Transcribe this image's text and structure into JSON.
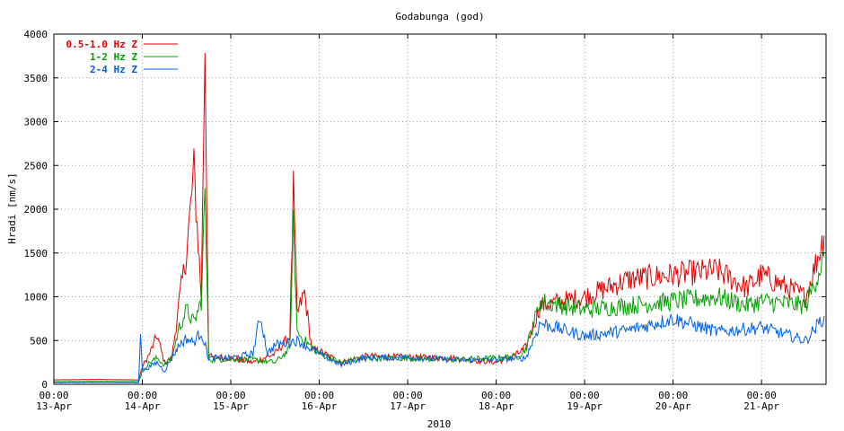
{
  "chart_data": {
    "type": "line",
    "title": "Godabunga (god)",
    "ylabel": "Hradi [nm/s]",
    "xlabel": "2010",
    "ylim": [
      0,
      4000
    ],
    "xlim": [
      "2010-04-13T00:00",
      "2010-04-21T17:30"
    ],
    "grid": true,
    "legend_position": "top-left",
    "y_ticks": [
      "0",
      "500",
      "1000",
      "1500",
      "2000",
      "2500",
      "3000",
      "3500",
      "4000"
    ],
    "x_ticks": [
      {
        "time": "00:00",
        "date": "13-Apr"
      },
      {
        "time": "00:00",
        "date": "14-Apr"
      },
      {
        "time": "00:00",
        "date": "15-Apr"
      },
      {
        "time": "00:00",
        "date": "16-Apr"
      },
      {
        "time": "00:00",
        "date": "17-Apr"
      },
      {
        "time": "00:00",
        "date": "18-Apr"
      },
      {
        "time": "00:00",
        "date": "19-Apr"
      },
      {
        "time": "00:00",
        "date": "20-Apr"
      },
      {
        "time": "00:00",
        "date": "21-Apr"
      }
    ],
    "series": [
      {
        "name": "0.5-1.0 Hz Z",
        "color": "#e00000",
        "x": [
          "2010-04-13T00:00",
          "2010-04-13T12:00",
          "2010-04-13T23:00",
          "2010-04-14T00:00",
          "2010-04-14T02:00",
          "2010-04-14T04:00",
          "2010-04-14T06:00",
          "2010-04-14T08:00",
          "2010-04-14T10:00",
          "2010-04-14T12:00",
          "2010-04-14T14:00",
          "2010-04-14T16:00",
          "2010-04-14T17:00",
          "2010-04-14T18:00",
          "2010-04-14T19:00",
          "2010-04-14T20:00",
          "2010-04-15T00:00",
          "2010-04-15T06:00",
          "2010-04-15T12:00",
          "2010-04-15T16:00",
          "2010-04-15T17:00",
          "2010-04-15T18:00",
          "2010-04-15T20:00",
          "2010-04-15T22:00",
          "2010-04-16T00:00",
          "2010-04-16T06:00",
          "2010-04-16T12:00",
          "2010-04-17T00:00",
          "2010-04-17T12:00",
          "2010-04-18T00:00",
          "2010-04-18T06:00",
          "2010-04-18T08:00",
          "2010-04-18T12:00",
          "2010-04-19T00:00",
          "2010-04-19T12:00",
          "2010-04-20T00:00",
          "2010-04-20T12:00",
          "2010-04-20T20:00",
          "2010-04-21T00:00",
          "2010-04-21T12:00",
          "2010-04-21T17:00"
        ],
        "y": [
          50,
          55,
          50,
          200,
          350,
          560,
          250,
          300,
          950,
          1500,
          2450,
          1000,
          3900,
          350,
          300,
          310,
          300,
          250,
          350,
          550,
          2200,
          800,
          1050,
          400,
          380,
          250,
          320,
          310,
          300,
          250,
          350,
          420,
          900,
          1000,
          1200,
          1250,
          1300,
          1100,
          1250,
          1000,
          1700
        ]
      },
      {
        "name": "1-2 Hz Z",
        "color": "#00a000",
        "x": [
          "2010-04-13T00:00",
          "2010-04-13T12:00",
          "2010-04-13T23:00",
          "2010-04-14T00:00",
          "2010-04-14T02:00",
          "2010-04-14T04:00",
          "2010-04-14T06:00",
          "2010-04-14T08:00",
          "2010-04-14T10:00",
          "2010-04-14T12:00",
          "2010-04-14T14:00",
          "2010-04-14T16:00",
          "2010-04-14T17:00",
          "2010-04-14T18:00",
          "2010-04-14T19:00",
          "2010-04-15T00:00",
          "2010-04-15T06:00",
          "2010-04-15T12:00",
          "2010-04-15T16:00",
          "2010-04-15T17:00",
          "2010-04-15T18:00",
          "2010-04-15T20:00",
          "2010-04-16T00:00",
          "2010-04-16T06:00",
          "2010-04-16T12:00",
          "2010-04-17T00:00",
          "2010-04-17T12:00",
          "2010-04-18T00:00",
          "2010-04-18T06:00",
          "2010-04-18T08:00",
          "2010-04-18T12:00",
          "2010-04-19T00:00",
          "2010-04-19T12:00",
          "2010-04-20T00:00",
          "2010-04-20T12:00",
          "2010-04-20T20:00",
          "2010-04-21T00:00",
          "2010-04-21T12:00",
          "2010-04-21T17:00"
        ],
        "y": [
          30,
          32,
          30,
          150,
          250,
          300,
          220,
          300,
          650,
          850,
          700,
          950,
          2200,
          300,
          280,
          290,
          280,
          250,
          400,
          1800,
          600,
          500,
          350,
          250,
          300,
          300,
          280,
          300,
          320,
          400,
          950,
          850,
          900,
          950,
          1000,
          900,
          950,
          900,
          1450
        ]
      },
      {
        "name": "2-4 Hz Z",
        "color": "#0060e0",
        "x": [
          "2010-04-13T00:00",
          "2010-04-13T12:00",
          "2010-04-13T23:00",
          "2010-04-13T23:30",
          "2010-04-14T00:00",
          "2010-04-14T02:00",
          "2010-04-14T04:00",
          "2010-04-14T06:00",
          "2010-04-14T08:00",
          "2010-04-14T10:00",
          "2010-04-14T12:00",
          "2010-04-14T14:00",
          "2010-04-14T16:00",
          "2010-04-14T18:00",
          "2010-04-15T00:00",
          "2010-04-15T06:00",
          "2010-04-15T08:00",
          "2010-04-15T10:00",
          "2010-04-15T12:00",
          "2010-04-15T18:00",
          "2010-04-16T00:00",
          "2010-04-16T06:00",
          "2010-04-16T12:00",
          "2010-04-17T00:00",
          "2010-04-17T12:00",
          "2010-04-18T00:00",
          "2010-04-18T08:00",
          "2010-04-18T12:00",
          "2010-04-19T00:00",
          "2010-04-19T12:00",
          "2010-04-20T00:00",
          "2010-04-20T12:00",
          "2010-04-21T00:00",
          "2010-04-21T12:00",
          "2010-04-21T17:00"
        ],
        "y": [
          20,
          22,
          20,
          630,
          150,
          200,
          250,
          150,
          300,
          450,
          520,
          480,
          600,
          300,
          300,
          350,
          780,
          350,
          450,
          500,
          350,
          220,
          300,
          310,
          280,
          280,
          300,
          700,
          550,
          620,
          750,
          600,
          650,
          500,
          780
        ]
      }
    ]
  }
}
